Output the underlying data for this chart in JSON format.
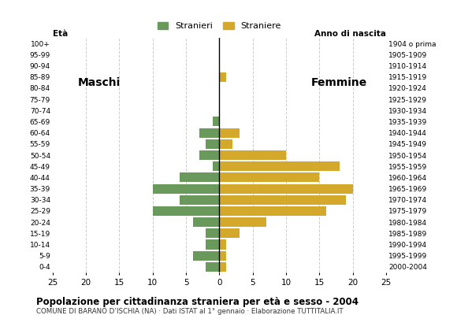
{
  "age_groups": [
    "100+",
    "95-99",
    "90-94",
    "85-89",
    "80-84",
    "75-79",
    "70-74",
    "65-69",
    "60-64",
    "55-59",
    "50-54",
    "45-49",
    "40-44",
    "35-39",
    "30-34",
    "25-29",
    "20-24",
    "15-19",
    "10-14",
    "5-9",
    "0-4"
  ],
  "birth_years": [
    "1904 o prima",
    "1905-1909",
    "1910-1914",
    "1915-1919",
    "1920-1924",
    "1925-1929",
    "1930-1934",
    "1935-1939",
    "1940-1944",
    "1945-1949",
    "1950-1954",
    "1955-1959",
    "1960-1964",
    "1965-1969",
    "1970-1974",
    "1975-1979",
    "1980-1984",
    "1985-1989",
    "1990-1994",
    "1995-1999",
    "2000-2004"
  ],
  "males": [
    0,
    0,
    0,
    0,
    0,
    0,
    0,
    1,
    3,
    2,
    3,
    1,
    6,
    10,
    6,
    10,
    4,
    2,
    2,
    4,
    2
  ],
  "females": [
    0,
    0,
    0,
    1,
    0,
    0,
    0,
    0,
    3,
    2,
    10,
    18,
    15,
    20,
    19,
    16,
    7,
    3,
    1,
    1,
    1
  ],
  "male_color": "#6a9a5b",
  "female_color": "#d4a82a",
  "xlim": 25,
  "bar_height": 0.85,
  "title": "Popolazione per cittadinanza straniera per età e sesso - 2004",
  "subtitle": "COMUNE DI BARANO D’ISCHIA (NA) · Dati ISTAT al 1° gennaio · Elaborazione TUTTITALIA.IT",
  "ylabel_left": "Età",
  "ylabel_right": "Anno di nascita",
  "label_maschi": "Maschi",
  "label_femmine": "Femmine",
  "legend_stranieri": "Stranieri",
  "legend_straniere": "Straniere",
  "background_color": "#ffffff",
  "grid_color": "#cccccc"
}
